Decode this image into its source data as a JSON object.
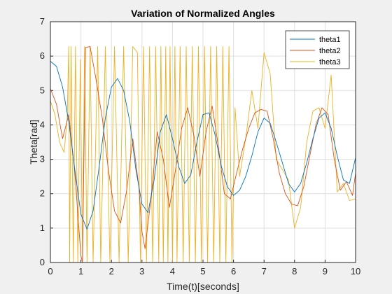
{
  "chart_data": {
    "type": "line",
    "title": "Variation of Normalized Angles",
    "xlabel": "Time(t)[seconds]",
    "ylabel": "Theta[rad]",
    "xlim": [
      0,
      10
    ],
    "ylim": [
      0,
      7
    ],
    "xticks": [
      "0",
      "1",
      "2",
      "3",
      "4",
      "5",
      "6",
      "7",
      "8",
      "9",
      "10"
    ],
    "yticks": [
      "0",
      "1",
      "2",
      "3",
      "4",
      "5",
      "6",
      "7"
    ],
    "grid": true,
    "legend_position": "top-right",
    "series": [
      {
        "name": "theta1",
        "color": "#0072BD",
        "x": [
          0,
          0.2,
          0.4,
          0.6,
          0.8,
          1.0,
          1.2,
          1.4,
          1.6,
          1.8,
          2.0,
          2.2,
          2.4,
          2.6,
          2.8,
          3.0,
          3.2,
          3.4,
          3.6,
          3.8,
          4.0,
          4.2,
          4.4,
          4.6,
          4.8,
          5.0,
          5.2,
          5.4,
          5.6,
          5.8,
          6.0,
          6.2,
          6.4,
          6.6,
          6.8,
          7.0,
          7.2,
          7.4,
          7.6,
          7.8,
          8.0,
          8.2,
          8.4,
          8.6,
          8.8,
          9.0,
          9.2,
          9.4,
          9.6,
          9.8,
          10.0
        ],
        "y": [
          5.85,
          5.7,
          5.1,
          4.1,
          2.7,
          1.4,
          0.97,
          1.5,
          2.8,
          4.2,
          5.1,
          5.35,
          5.0,
          4.1,
          2.7,
          1.7,
          1.45,
          2.4,
          3.8,
          4.3,
          3.6,
          2.8,
          2.3,
          2.55,
          3.5,
          4.3,
          4.35,
          3.7,
          2.8,
          2.2,
          1.95,
          2.1,
          2.5,
          3.1,
          3.8,
          4.2,
          4.05,
          3.5,
          2.9,
          2.3,
          2.05,
          2.3,
          2.9,
          3.6,
          4.2,
          4.35,
          3.9,
          3.1,
          2.4,
          2.3,
          3.05
        ]
      },
      {
        "name": "theta2",
        "color": "#D95319",
        "x": [
          0,
          0.2,
          0.4,
          0.6,
          0.8,
          1.0,
          1.05,
          1.15,
          1.3,
          1.5,
          1.7,
          1.9,
          2.1,
          2.3,
          2.5,
          2.7,
          2.9,
          3.0,
          3.1,
          3.3,
          3.5,
          3.7,
          3.9,
          4.1,
          4.3,
          4.5,
          4.7,
          4.9,
          5.1,
          5.3,
          5.5,
          5.7,
          5.9,
          6.1,
          6.3,
          6.5,
          6.7,
          6.9,
          7.1,
          7.3,
          7.5,
          7.7,
          7.9,
          8.1,
          8.3,
          8.5,
          8.7,
          8.9,
          9.1,
          9.3,
          9.5,
          9.7,
          9.9,
          10.0
        ],
        "y": [
          5.05,
          4.6,
          3.6,
          4.3,
          2.6,
          0.2,
          0.0,
          6.25,
          6.28,
          5.3,
          4.2,
          2.7,
          1.5,
          1.15,
          2.1,
          3.6,
          2.2,
          0.9,
          0.4,
          1.9,
          3.8,
          3.0,
          1.6,
          2.7,
          3.9,
          4.5,
          3.7,
          2.5,
          3.8,
          4.55,
          3.4,
          2.0,
          1.85,
          2.6,
          3.3,
          3.9,
          4.35,
          4.45,
          4.4,
          3.6,
          2.6,
          2.0,
          1.7,
          1.65,
          2.2,
          3.1,
          4.0,
          4.5,
          4.3,
          3.0,
          2.1,
          2.35,
          1.95,
          2.6
        ]
      },
      {
        "name": "theta3",
        "color": "#EDB120",
        "x": [
          0,
          0.15,
          0.3,
          0.45,
          0.55,
          0.6,
          0.63,
          0.68,
          0.75,
          0.82,
          0.9,
          0.98,
          1.05,
          1.12,
          1.2,
          1.3,
          1.4,
          1.55,
          1.65,
          1.8,
          1.95,
          2.1,
          2.25,
          2.4,
          2.55,
          2.7,
          2.85,
          2.95,
          3.05,
          3.15,
          3.25,
          3.35,
          3.45,
          3.55,
          3.62,
          3.7,
          3.78,
          3.85,
          3.92,
          4.0,
          4.08,
          4.15,
          4.25,
          4.35,
          4.45,
          4.55,
          4.65,
          4.75,
          4.85,
          4.95,
          5.05,
          5.15,
          5.25,
          5.35,
          5.45,
          5.55,
          5.65,
          5.75,
          5.85,
          5.95,
          6.05,
          6.2,
          6.4,
          6.6,
          6.8,
          7.0,
          7.2,
          7.4,
          7.6,
          7.8,
          8.0,
          8.2,
          8.4,
          8.6,
          8.8,
          9.0,
          9.2,
          9.4,
          9.6,
          9.8,
          10.0
        ],
        "y": [
          4.7,
          4.3,
          3.5,
          3.2,
          4.2,
          6.28,
          0.0,
          6.28,
          0.0,
          6.28,
          0.0,
          5.9,
          0.1,
          6.28,
          0.0,
          6.28,
          0.0,
          6.28,
          0.0,
          6.28,
          0.0,
          6.28,
          0.0,
          6.28,
          0.0,
          6.28,
          6.1,
          0.0,
          6.28,
          0.0,
          6.28,
          0.0,
          6.28,
          0.0,
          6.28,
          0.0,
          6.28,
          0.0,
          6.28,
          0.0,
          6.28,
          0.0,
          6.28,
          0.0,
          6.28,
          0.0,
          6.28,
          0.0,
          6.28,
          0.0,
          6.28,
          0.0,
          6.28,
          0.0,
          6.28,
          0.0,
          6.28,
          0.0,
          6.28,
          0.0,
          4.5,
          2.5,
          3.6,
          5.0,
          3.9,
          6.1,
          5.5,
          3.0,
          2.7,
          2.4,
          1.0,
          1.6,
          3.5,
          4.4,
          4.5,
          3.9,
          5.45,
          2.05,
          2.3,
          1.8,
          1.85
        ]
      }
    ]
  }
}
